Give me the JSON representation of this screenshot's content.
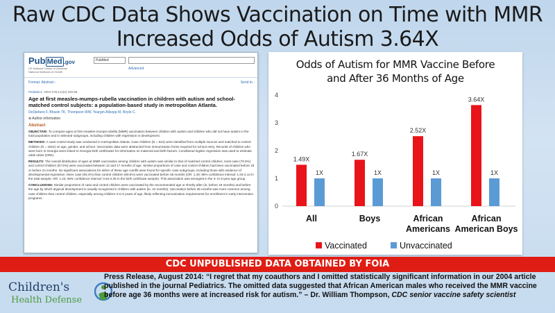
{
  "headline": {
    "line1": "Raw CDC Data Shows Vaccination on Time with MMR",
    "line2": "Increased Odds of Autism 3.64X"
  },
  "pubmed": {
    "logo_pub": "Pub",
    "logo_med": "Med",
    "logo_gov": ".gov",
    "logo_sub": "US National Library of Medicine National Institutes of Health",
    "db_select": "PubMed",
    "advanced": "Advanced",
    "format": "Format: Abstract -",
    "send_to": "Send to -",
    "citation_journal": "Pediatrics.",
    "citation_rest": " 2004 Feb;113(2):259-66.",
    "article_title": "Age at first measles-mumps-rubella vaccination in children with autism and school-matched control subjects: a population-based study in metropolitan Atlanta.",
    "authors": "DeStefano F, Bhasin TK, Thompson WW, Yeargin-Allsopp M, Boyle C.",
    "author_info": "⊕ Author information",
    "abstract_heading": "Abstract",
    "objective_label": "OBJECTIVE:",
    "objective": " To compare ages at first measles-mumps-rubella (MMR) vaccination between children with autism and children who did not have autism in the total population and in selected subgroups, including children with regression in development.",
    "methods_label": "METHODS:",
    "methods": " A case-control study was conducted in metropolitan Atlanta. Case children (N = 624) were identified from multiple sources and matched to control children (N = 1824) on age, gender, and school. Vaccination data were abstracted from immunization forms required for school entry. Records of children who were born in Georgia were linked to Georgia birth certificates for information on maternal and birth factors. Conditional logistic regression was used to estimate odds ratios (ORs).",
    "results_label": "RESULTS:",
    "results": " The overall distribution of ages at MMR vaccination among children with autism was similar to that of matched control children; most case (70.5%) and control children (67.5%) were vaccinated between 12 and 17 months of age. Similar proportions of case and control children had been vaccinated before 18 or before 24 months. No significant associations for either of these age cutoffs were found for specific case subgroups, including those with evidence of developmental regression. More case (93.4%) than control children (90.6%) were vaccinated before 36 months (OR: 1.49; 95% confidence interval: 1.04-2.14 in the total sample; OR: 1.23; 95% confidence interval: 0.64-2.36 in the birth certificate sample). This association was strongest in the 3- to 5-year age group.",
    "conclusions_label": "CONCLUSIONS:",
    "conclusions": " Similar proportions of case and control children were vaccinated by the recommended age or shortly after (ie, before 18 months) and before the age by which atypical development is usually recognized in children with autism (ie, 24 months). Vaccination before 36 months was more common among case children than control children, especially among children 3 to 5 years of age, likely reflecting immunization requirements for enrollment in early intervention programs."
  },
  "chart_data": {
    "type": "bar",
    "title_line1": "Odds of Autism for MMR Vaccine Before",
    "title_line2": "and After 36 Months of Age",
    "categories": [
      [
        "All"
      ],
      [
        "Boys"
      ],
      [
        "African",
        "Americans"
      ],
      [
        "African",
        "American Boys"
      ]
    ],
    "series": [
      {
        "name": "Vaccinated",
        "color": "#e8141a",
        "values": [
          1.49,
          1.67,
          2.52,
          3.64
        ],
        "labels": [
          "1.49X",
          "1.67X",
          "2.52X",
          "3.64X"
        ]
      },
      {
        "name": "Unvaccinated",
        "color": "#5b9bd5",
        "values": [
          1,
          1,
          1,
          1
        ],
        "labels": [
          "1X",
          "1X",
          "1X",
          "1X"
        ]
      }
    ],
    "ylim": [
      0,
      4
    ],
    "yticks": [
      0,
      1,
      2,
      3,
      4
    ],
    "grid": false,
    "legend": "bottom"
  },
  "banner": "CDC UNPUBLISHED DATA OBTAINED BY FOIA",
  "logo": {
    "line1": "Children's",
    "line2": "Health Defense"
  },
  "quote": {
    "text": "Press Release, August 2014: “I regret that my coauthors and I omitted statistically significant information in our 2004 article published in the journal Pediatrics. The omitted data suggested that African American males who received the MMR vaccine before age 36 months were at increased risk for autism.” – Dr. William Thompson, ",
    "credit": "CDC senior vaccine safety scientist"
  }
}
